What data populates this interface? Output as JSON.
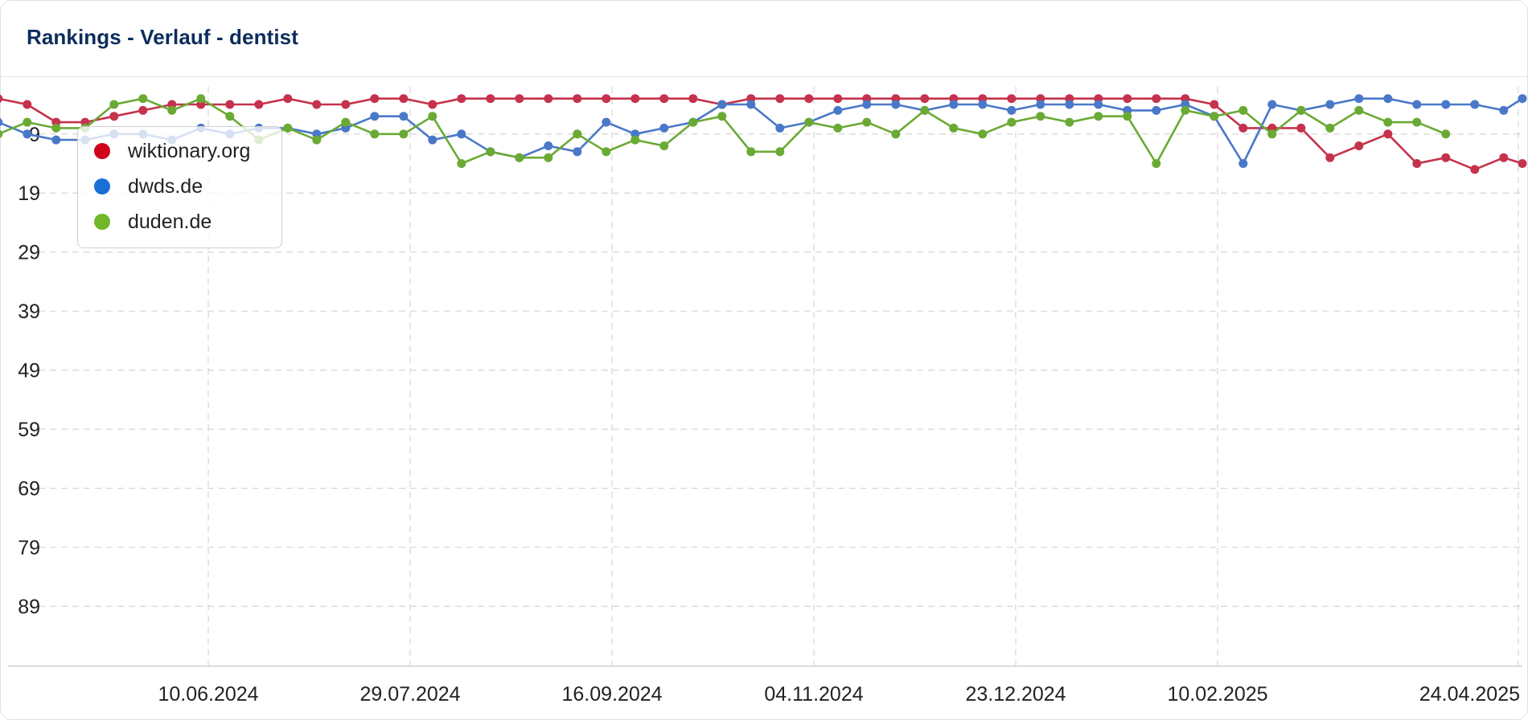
{
  "header": {
    "title": "Rankings - Verlauf - dentist"
  },
  "chart_data": {
    "type": "line",
    "title": "Rankings - Verlauf - dentist",
    "xlabel": "",
    "ylabel": "",
    "y_reversed": true,
    "ylim": [
      1,
      99
    ],
    "yticks": [
      9,
      19,
      29,
      39,
      49,
      59,
      69,
      79,
      89
    ],
    "xlim": [
      "2024-04-20",
      "2025-04-24"
    ],
    "xticks": [
      "10.06.2024",
      "29.07.2024",
      "16.09.2024",
      "04.11.2024",
      "23.12.2024",
      "10.02.2025",
      "24.04.2025"
    ],
    "grid": true,
    "legend": "top-left",
    "series": [
      {
        "name": "wiktionary.org",
        "color": "#c5324c",
        "legend_color": "#d0021b",
        "values": [
          3,
          4,
          7,
          7,
          6,
          5,
          4,
          4,
          4,
          4,
          3,
          4,
          4,
          3,
          3,
          4,
          3,
          3,
          3,
          3,
          3,
          3,
          3,
          3,
          3,
          4,
          3,
          3,
          3,
          3,
          3,
          3,
          3,
          3,
          3,
          3,
          3,
          3,
          3,
          3,
          3,
          3,
          4,
          8,
          8,
          8,
          13,
          11,
          9,
          14,
          13,
          15,
          13,
          14
        ]
      },
      {
        "name": "dwds.de",
        "color": "#4a78c8",
        "legend_color": "#1a6fd6",
        "values": [
          7,
          9,
          10,
          10,
          9,
          9,
          10,
          8,
          9,
          8,
          8,
          9,
          8,
          6,
          6,
          10,
          9,
          12,
          13,
          11,
          12,
          7,
          9,
          8,
          7,
          4,
          4,
          8,
          7,
          5,
          4,
          4,
          5,
          4,
          4,
          5,
          4,
          4,
          4,
          5,
          5,
          4,
          6,
          14,
          4,
          5,
          4,
          3,
          3,
          4,
          4,
          4,
          5,
          3
        ]
      },
      {
        "name": "duden.de",
        "color": "#6aaa34",
        "legend_color": "#72b62a",
        "values": [
          9,
          7,
          8,
          8,
          4,
          3,
          5,
          3,
          6,
          10,
          8,
          10,
          7,
          9,
          9,
          6,
          14,
          12,
          13,
          13,
          9,
          12,
          10,
          11,
          7,
          6,
          12,
          12,
          7,
          8,
          7,
          9,
          5,
          8,
          9,
          7,
          6,
          7,
          6,
          6,
          14,
          5,
          6,
          5,
          9,
          5,
          8,
          5,
          7,
          7,
          9
        ]
      }
    ],
    "series_x_start": [
      "2024-04-20",
      "2024-04-20",
      "2024-04-20"
    ]
  }
}
